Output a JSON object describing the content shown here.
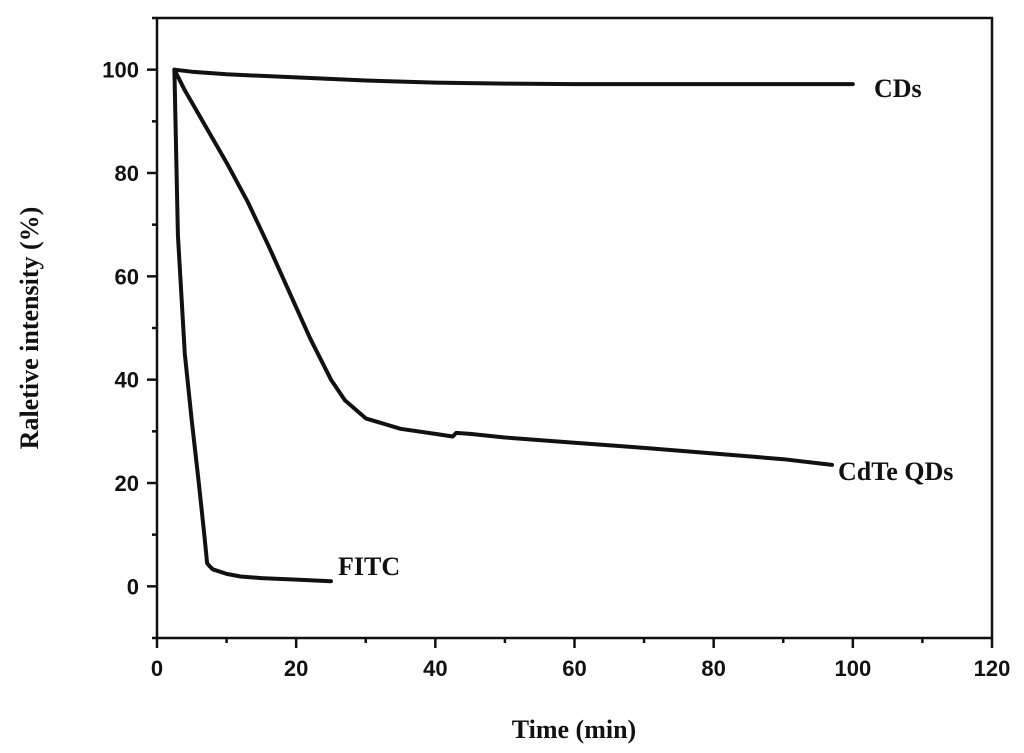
{
  "chart_data": {
    "type": "line",
    "title": "",
    "xlabel": "Time (min)",
    "ylabel": "Raletive intensity (%)",
    "xlim": [
      0,
      120
    ],
    "ylim": [
      -10,
      110
    ],
    "x_ticks": [
      0,
      20,
      40,
      60,
      80,
      100,
      120
    ],
    "y_ticks": [
      0,
      20,
      40,
      60,
      80,
      100
    ],
    "x_tick_labels": [
      "0",
      "20",
      "40",
      "60",
      "80",
      "100",
      "120"
    ],
    "y_tick_labels": [
      "0",
      "20",
      "40",
      "60",
      "80",
      "100"
    ],
    "grid": false,
    "series": [
      {
        "name": "CDs",
        "label": "CDs",
        "x": [
          2.5,
          5,
          10,
          20,
          30,
          40,
          50,
          60,
          70,
          80,
          90,
          100
        ],
        "y": [
          100,
          99.6,
          99.1,
          98.5,
          97.9,
          97.5,
          97.3,
          97.2,
          97.2,
          97.2,
          97.2,
          97.2
        ]
      },
      {
        "name": "CdTe QDs",
        "label": "CdTe QDs",
        "x": [
          2.5,
          4,
          7,
          10,
          13,
          16,
          19,
          22,
          25,
          27,
          30,
          35,
          40,
          42.5,
          43,
          45,
          50,
          60,
          70,
          80,
          90,
          97
        ],
        "y": [
          100,
          96,
          89,
          82,
          74.5,
          66,
          57,
          48,
          40,
          36,
          32.5,
          30.5,
          29.5,
          29,
          29.7,
          29.5,
          28.8,
          27.8,
          26.8,
          25.7,
          24.6,
          23.5
        ]
      },
      {
        "name": "FITC",
        "label": "FITC",
        "x": [
          2.5,
          3,
          4,
          5,
          6,
          6.8,
          7.2,
          7.5,
          8,
          10,
          12,
          15,
          20,
          25
        ],
        "y": [
          100,
          68,
          45,
          32,
          20,
          10,
          4.5,
          4,
          3.3,
          2.4,
          1.9,
          1.6,
          1.3,
          1.0
        ]
      }
    ]
  }
}
